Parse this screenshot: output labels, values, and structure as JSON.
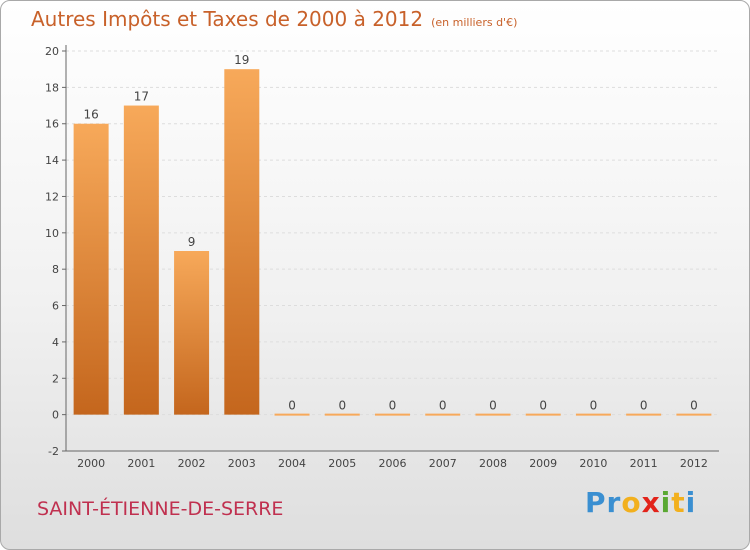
{
  "title": "Autres Impôts et Taxes de 2000 à 2012",
  "subtitle": "(en milliers d'€)",
  "commune": "SAINT-ÉTIENNE-DE-SERRE",
  "logo": {
    "letters": [
      "P",
      "r",
      "o",
      "x",
      "i",
      "t",
      "i"
    ],
    "colors": [
      "#3a8fd1",
      "#3a8fd1",
      "#f2b01e",
      "#e2231a",
      "#5aa832",
      "#f2b01e",
      "#3a8fd1"
    ]
  },
  "colors": {
    "title": "#c8612a",
    "commune": "#c0304f",
    "bar_light": "#f7a95a",
    "bar_dark": "#c4661d",
    "grid": "#dddddd"
  },
  "chart_data": {
    "type": "bar",
    "categories": [
      "2000",
      "2001",
      "2002",
      "2003",
      "2004",
      "2005",
      "2006",
      "2007",
      "2008",
      "2009",
      "2010",
      "2011",
      "2012"
    ],
    "values": [
      16,
      17,
      9,
      19,
      0,
      0,
      0,
      0,
      0,
      0,
      0,
      0,
      0
    ],
    "data_labels": [
      "16",
      "17",
      "9",
      "19",
      "0",
      "0",
      "0",
      "0",
      "0",
      "0",
      "0",
      "0",
      "0"
    ],
    "yticks": [
      "-2",
      "0",
      "2",
      "4",
      "6",
      "8",
      "10",
      "12",
      "14",
      "16",
      "18",
      "20"
    ],
    "ylim": [
      -2,
      20
    ],
    "grid": "horizontal dashed"
  }
}
